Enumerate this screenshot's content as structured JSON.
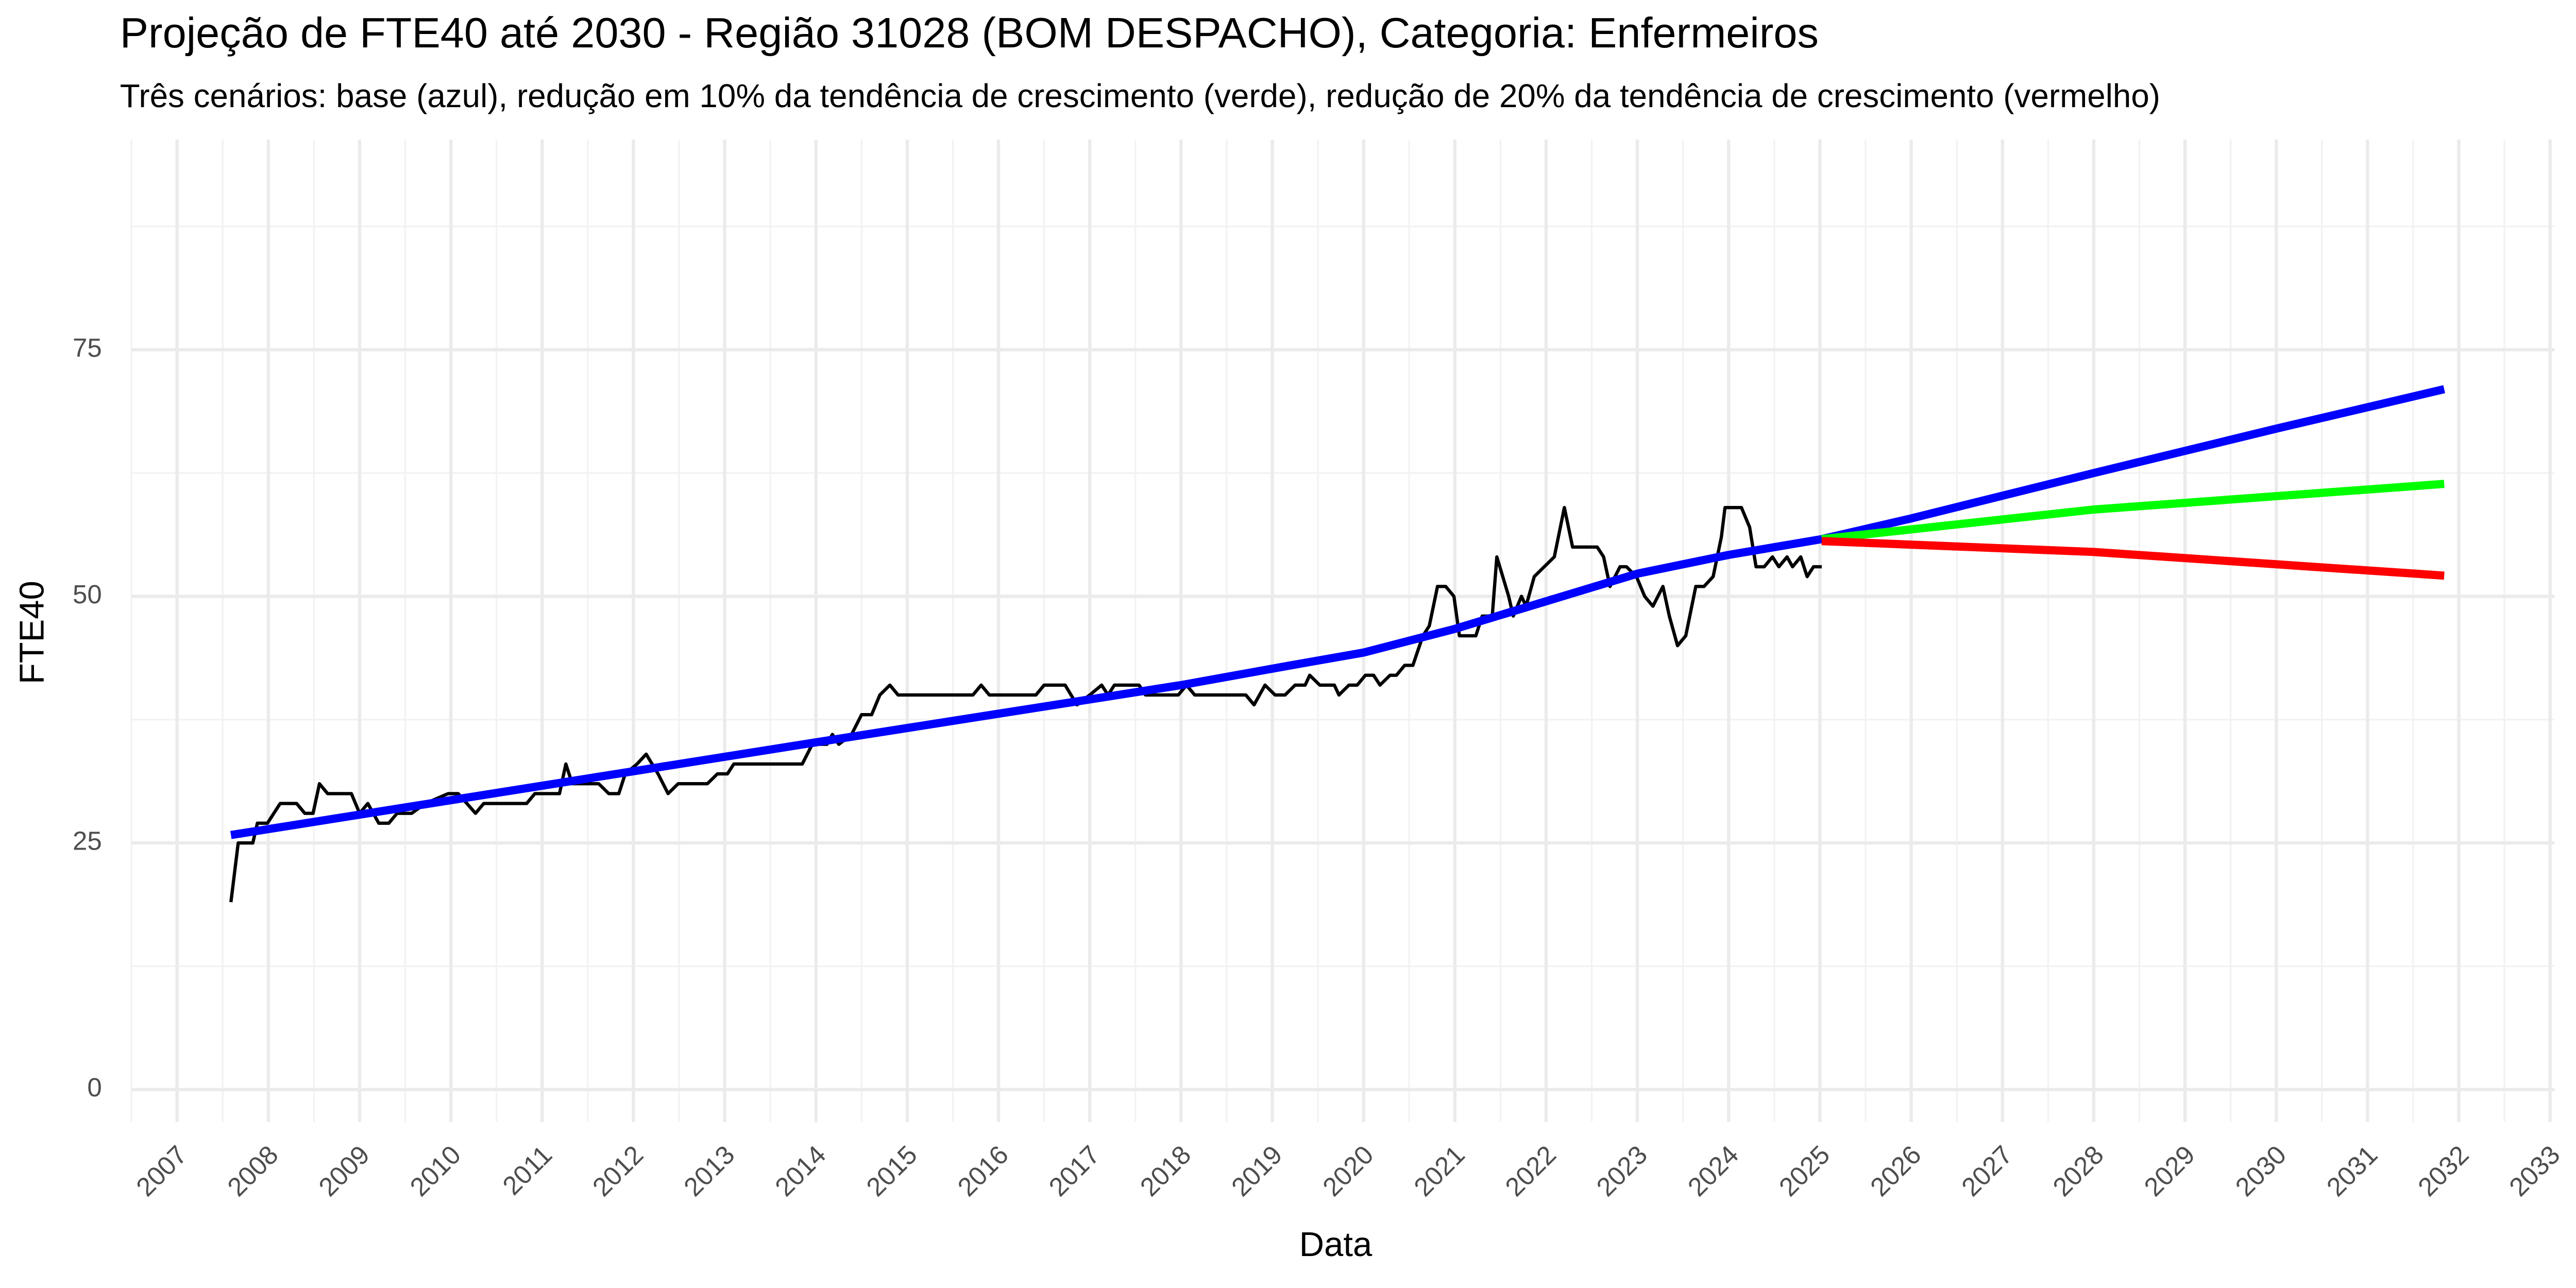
{
  "chart_data": {
    "type": "line",
    "title": "Projeção de FTE40 até 2030 - Região 31028 (BOM DESPACHO), Categoria: Enfermeiros",
    "subtitle": "Três cenários: base (azul), redução em 10% da tendência de crescimento (verde), redução de 20% da tendência de crescimento (vermelho)",
    "x_label": "Data",
    "y_label": "FTE40",
    "xlim": [
      2006.5,
      2033.05
    ],
    "ylim": [
      -3.3,
      96.3
    ],
    "xticks": [
      2007,
      2008,
      2009,
      2010,
      2011,
      2012,
      2013,
      2014,
      2015,
      2016,
      2017,
      2018,
      2019,
      2020,
      2021,
      2022,
      2023,
      2024,
      2025,
      2026,
      2027,
      2028,
      2029,
      2030,
      2031,
      2032,
      2033
    ],
    "yticks": [
      0,
      25,
      50,
      75
    ],
    "minor_xticks": [
      2006.5,
      2007.5,
      2008.5,
      2009.5,
      2010.5,
      2011.5,
      2012.5,
      2013.5,
      2014.5,
      2015.5,
      2016.5,
      2017.5,
      2018.5,
      2019.5,
      2020.5,
      2021.5,
      2022.5,
      2023.5,
      2024.5,
      2025.5,
      2026.5,
      2027.5,
      2028.5,
      2029.5,
      2030.5,
      2031.5,
      2032.5
    ],
    "minor_yticks": [
      12.5,
      37.5,
      62.5,
      87.5
    ],
    "grid": true,
    "series": [
      {
        "color": "#000000",
        "width": 2,
        "x": [
          2007.59,
          2007.67,
          2007.83,
          2007.88,
          2007.99,
          2008.13,
          2008.31,
          2008.4,
          2008.49,
          2008.56,
          2008.65,
          2008.91,
          2009.0,
          2009.09,
          2009.21,
          2009.32,
          2009.41,
          2009.57,
          2009.72,
          2009.97,
          2010.08,
          2010.27,
          2010.36,
          2010.83,
          2010.92,
          2011.19,
          2011.26,
          2011.33,
          2011.62,
          2011.73,
          2011.84,
          2011.91,
          2012.04,
          2012.14,
          2012.27,
          2012.38,
          2012.49,
          2012.81,
          2012.92,
          2013.03,
          2013.1,
          2013.85,
          2013.96,
          2014.12,
          2014.18,
          2014.25,
          2014.39,
          2014.5,
          2014.61,
          2014.7,
          2014.81,
          2014.9,
          2015.72,
          2015.81,
          2015.9,
          2016.41,
          2016.5,
          2016.73,
          2016.86,
          2017.0,
          2017.13,
          2017.2,
          2017.27,
          2017.54,
          2017.61,
          2017.97,
          2018.06,
          2018.15,
          2018.71,
          2018.8,
          2018.92,
          2019.03,
          2019.14,
          2019.25,
          2019.36,
          2019.41,
          2019.52,
          2019.68,
          2019.73,
          2019.84,
          2019.93,
          2020.02,
          2020.11,
          2020.18,
          2020.29,
          2020.36,
          2020.45,
          2020.54,
          2020.65,
          2020.72,
          2020.81,
          2020.9,
          2020.99,
          2021.05,
          2021.23,
          2021.3,
          2021.41,
          2021.46,
          2021.59,
          2021.64,
          2021.73,
          2021.78,
          2021.87,
          2021.98,
          2022.09,
          2022.2,
          2022.29,
          2022.56,
          2022.63,
          2022.7,
          2022.81,
          2022.88,
          2022.99,
          2023.08,
          2023.17,
          2023.28,
          2023.35,
          2023.44,
          2023.53,
          2023.64,
          2023.73,
          2023.83,
          2023.92,
          2023.96,
          2024.14,
          2024.23,
          2024.3,
          2024.39,
          2024.48,
          2024.55,
          2024.64,
          2024.7,
          2024.79,
          2024.86,
          2024.93,
          2025.02
        ],
        "values": [
          19,
          25,
          25,
          27,
          27,
          29,
          29,
          28,
          28,
          31,
          30,
          30,
          28,
          29,
          27,
          27,
          28,
          28,
          29,
          30,
          30,
          28,
          29,
          29,
          30,
          30,
          33,
          31,
          31,
          30,
          30,
          32,
          33,
          34,
          32,
          30,
          31,
          31,
          32,
          32,
          33,
          33,
          35,
          35,
          36,
          35,
          36,
          38,
          38,
          40,
          41,
          40,
          40,
          41,
          40,
          40,
          41,
          41,
          39,
          40,
          41,
          40,
          41,
          41,
          40,
          40,
          41,
          40,
          40,
          39,
          41,
          40,
          40,
          41,
          41,
          42,
          41,
          41,
          40,
          41,
          41,
          42,
          42,
          41,
          42,
          42,
          43,
          43,
          46,
          47,
          51,
          51,
          50,
          46,
          46,
          48,
          48,
          54,
          50,
          48,
          50,
          49,
          52,
          53,
          54,
          59,
          55,
          55,
          54,
          51,
          53,
          53,
          52,
          50,
          49,
          51,
          48,
          45,
          46,
          51,
          51,
          52,
          56,
          59,
          59,
          57,
          53,
          53,
          54,
          53,
          54,
          53,
          54,
          52,
          53,
          53
        ]
      },
      {
        "color": "#0000ff",
        "width": 5,
        "x": [
          2007.59,
          2014,
          2018,
          2019.2,
          2020,
          2021,
          2022,
          2023,
          2024,
          2025.02,
          2026,
          2028,
          2030,
          2031.84
        ],
        "values": [
          25.8,
          35.2,
          41,
          43,
          44.3,
          46.7,
          49.5,
          52.3,
          54.2,
          55.8,
          57.9,
          62.5,
          67,
          71
        ]
      },
      {
        "color": "#00ff00",
        "width": 5,
        "x": [
          2025.02,
          2028,
          2031.84
        ],
        "values": [
          55.8,
          58.8,
          61.4
        ]
      },
      {
        "color": "#ff0000",
        "width": 5,
        "x": [
          2025.02,
          2028,
          2031.84
        ],
        "values": [
          55.6,
          54.5,
          52.1
        ]
      }
    ]
  }
}
